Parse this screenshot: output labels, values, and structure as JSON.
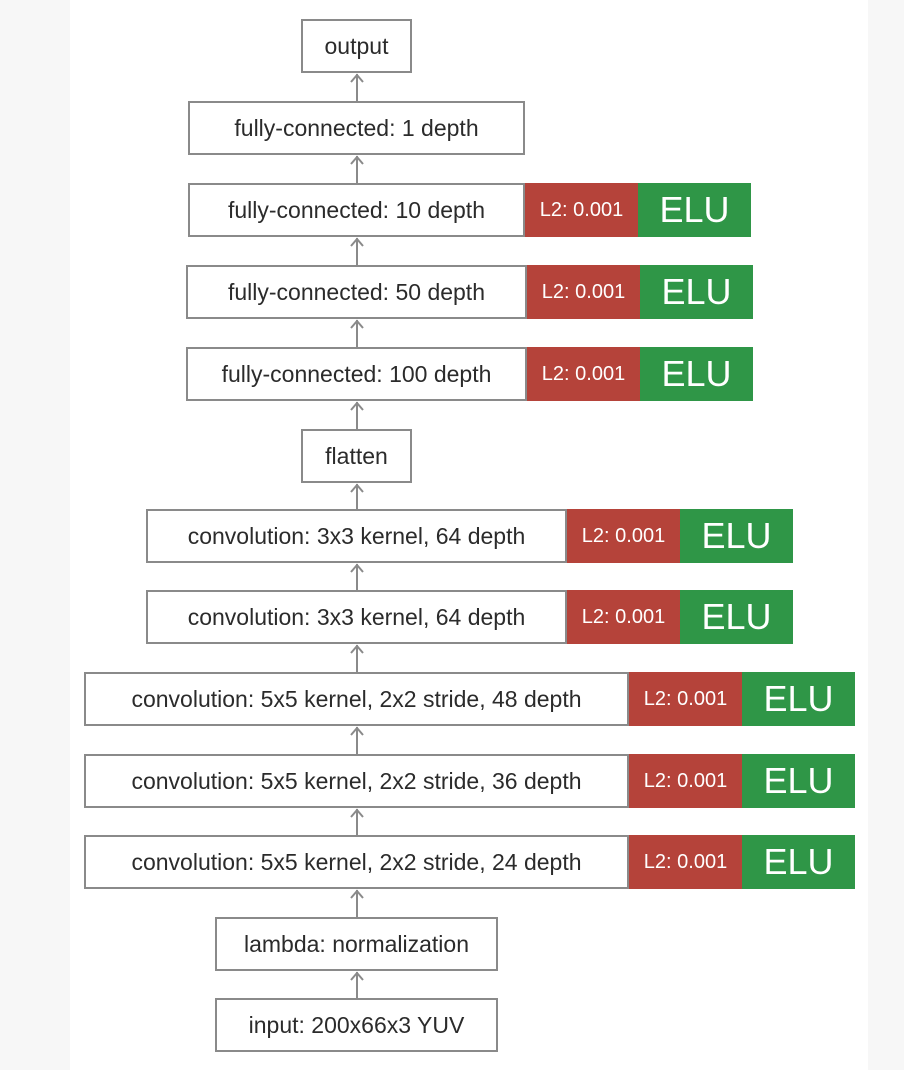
{
  "layers": [
    {
      "label": "output"
    },
    {
      "label": "fully-connected: 1 depth"
    },
    {
      "label": "fully-connected: 10 depth",
      "regularizer": "L2: 0.001",
      "activation": "ELU"
    },
    {
      "label": "fully-connected: 50 depth",
      "regularizer": "L2: 0.001",
      "activation": "ELU"
    },
    {
      "label": "fully-connected: 100 depth",
      "regularizer": "L2: 0.001",
      "activation": "ELU"
    },
    {
      "label": "flatten"
    },
    {
      "label": "convolution: 3x3 kernel, 64 depth",
      "regularizer": "L2: 0.001",
      "activation": "ELU"
    },
    {
      "label": "convolution: 3x3 kernel, 64 depth",
      "regularizer": "L2: 0.001",
      "activation": "ELU"
    },
    {
      "label": "convolution: 5x5 kernel, 2x2 stride, 48 depth",
      "regularizer": "L2: 0.001",
      "activation": "ELU"
    },
    {
      "label": "convolution: 5x5 kernel, 2x2 stride, 36 depth",
      "regularizer": "L2: 0.001",
      "activation": "ELU"
    },
    {
      "label": "convolution: 5x5 kernel, 2x2 stride, 24 depth",
      "regularizer": "L2: 0.001",
      "activation": "ELU"
    },
    {
      "label": "lambda: normalization"
    },
    {
      "label": "input: 200x66x3 YUV"
    }
  ],
  "colors": {
    "regularizer": "#b5433a",
    "activation": "#2f9647",
    "border": "#8a8a8a",
    "arrow": "#8a8a8a"
  }
}
